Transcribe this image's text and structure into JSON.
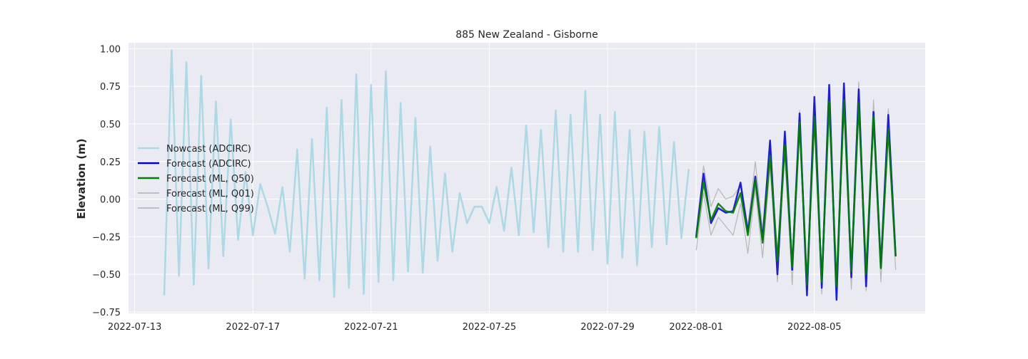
{
  "chart_data": {
    "type": "line",
    "title": "885 New Zealand - Gisborne",
    "xlabel": "",
    "ylabel": "Elevation (m)",
    "xlim": [
      "2022-07-12T19:00",
      "2022-08-08T18:00"
    ],
    "ylim": [
      -0.76,
      1.04
    ],
    "x_ticks": [
      "2022-07-13",
      "2022-07-17",
      "2022-07-21",
      "2022-07-25",
      "2022-07-29",
      "2022-08-01",
      "2022-08-05"
    ],
    "x_tick_labels": [
      "2022-07-13",
      "2022-07-17",
      "2022-07-21",
      "2022-07-25",
      "2022-07-29",
      "2022-08-01",
      "2022-08-05"
    ],
    "y_ticks": [
      -0.75,
      -0.5,
      -0.25,
      0.0,
      0.25,
      0.5,
      0.75,
      1.0
    ],
    "y_tick_labels": [
      "−0.75",
      "−0.50",
      "−0.25",
      "0.00",
      "0.25",
      "0.50",
      "0.75",
      "1.00"
    ],
    "grid": true,
    "legend_position": "center-left",
    "series": [
      {
        "name": "Nowcast (ADCIRC)",
        "color": "#add8e6",
        "start": "2022-07-14T00:00",
        "step_hours": 6,
        "values": [
          -0.64,
          0.99,
          -0.51,
          0.91,
          -0.57,
          0.82,
          -0.46,
          0.65,
          -0.38,
          0.53,
          -0.27,
          0.18,
          -0.24,
          0.1,
          -0.05,
          -0.23,
          0.08,
          -0.35,
          0.33,
          -0.53,
          0.4,
          -0.54,
          0.61,
          -0.65,
          0.66,
          -0.59,
          0.83,
          -0.63,
          0.76,
          -0.55,
          0.85,
          -0.54,
          0.64,
          -0.48,
          0.54,
          -0.49,
          0.35,
          -0.41,
          0.17,
          -0.35,
          0.04,
          -0.16,
          -0.05,
          -0.05,
          -0.16,
          0.08,
          -0.21,
          0.21,
          -0.24,
          0.49,
          -0.22,
          0.46,
          -0.32,
          0.59,
          -0.35,
          0.56,
          -0.35,
          0.72,
          -0.34,
          0.56,
          -0.43,
          0.58,
          -0.39,
          0.46,
          -0.44,
          0.45,
          -0.32,
          0.48,
          -0.3,
          0.38,
          -0.26,
          0.2
        ]
      },
      {
        "name": "Forecast (ADCIRC)",
        "color": "#0000cc",
        "start": "2022-08-01T00:00",
        "step_hours": 6,
        "values": [
          -0.25,
          0.17,
          -0.16,
          -0.06,
          -0.09,
          -0.08,
          0.11,
          -0.22,
          0.15,
          -0.27,
          0.39,
          -0.5,
          0.45,
          -0.47,
          0.57,
          -0.64,
          0.68,
          -0.59,
          0.76,
          -0.67,
          0.77,
          -0.52,
          0.73,
          -0.58,
          0.58,
          -0.45,
          0.56,
          -0.38
        ]
      },
      {
        "name": "Forecast (ML, Q50)",
        "color": "#008000",
        "start": "2022-08-01T00:00",
        "step_hours": 6,
        "values": [
          -0.26,
          0.11,
          -0.14,
          -0.03,
          -0.08,
          -0.09,
          0.04,
          -0.24,
          0.13,
          -0.29,
          0.29,
          -0.41,
          0.36,
          -0.45,
          0.51,
          -0.57,
          0.55,
          -0.55,
          0.65,
          -0.58,
          0.66,
          -0.48,
          0.64,
          -0.5,
          0.55,
          -0.46,
          0.47,
          -0.38
        ]
      },
      {
        "name": "Forecast (ML, Q01)",
        "color": "#b0b0b0",
        "start": "2022-08-01T00:00",
        "step_hours": 6,
        "values": [
          -0.34,
          0.04,
          -0.24,
          -0.12,
          -0.18,
          -0.24,
          -0.03,
          -0.36,
          0.07,
          -0.39,
          0.22,
          -0.55,
          0.29,
          -0.57,
          0.44,
          -0.6,
          0.49,
          -0.63,
          0.58,
          -0.63,
          0.6,
          -0.6,
          0.58,
          -0.61,
          0.49,
          -0.55,
          0.42,
          -0.47
        ]
      },
      {
        "name": "Forecast (ML, Q99)",
        "color": "#b0b0b0",
        "start": "2022-08-01T00:00",
        "step_hours": 6,
        "values": [
          -0.22,
          0.22,
          -0.05,
          0.07,
          0.0,
          0.02,
          0.09,
          -0.18,
          0.25,
          -0.2,
          0.37,
          -0.35,
          0.42,
          -0.4,
          0.59,
          -0.52,
          0.64,
          -0.48,
          0.72,
          -0.52,
          0.74,
          -0.44,
          0.78,
          -0.44,
          0.66,
          -0.4,
          0.6,
          -0.32
        ]
      }
    ]
  }
}
